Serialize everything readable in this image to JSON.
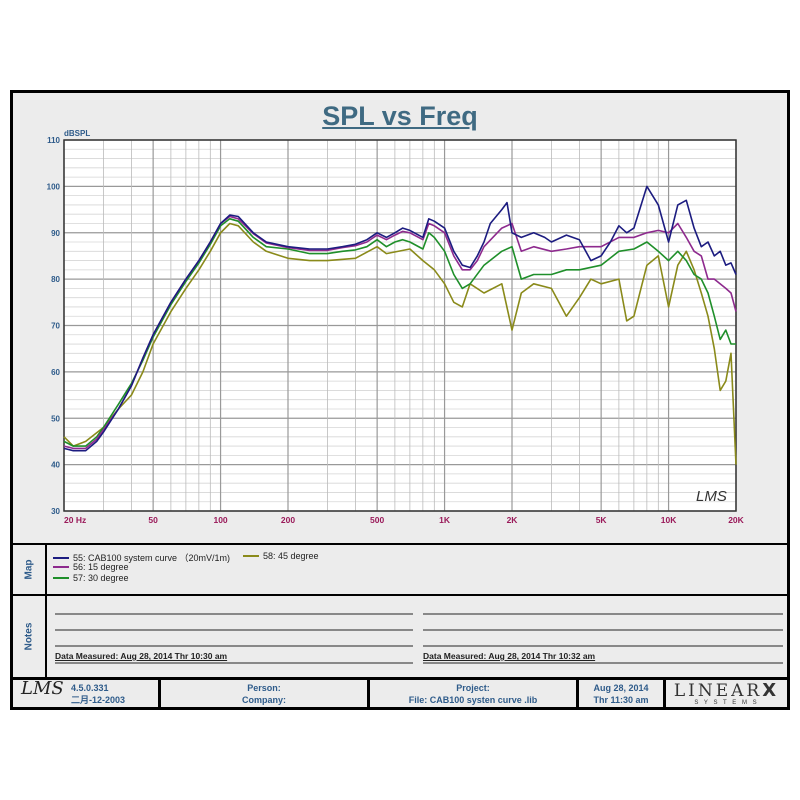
{
  "chart_data": {
    "type": "line",
    "title": "SPL vs Freq",
    "ylabel": "dBSPL",
    "xlabel": "",
    "x_scale": "log",
    "xlim": [
      20,
      20000
    ],
    "ylim": [
      30,
      110
    ],
    "grid": true,
    "x_ticks": [
      {
        "v": 20,
        "label": "20  Hz"
      },
      {
        "v": 50,
        "label": "50"
      },
      {
        "v": 100,
        "label": "100"
      },
      {
        "v": 200,
        "label": "200"
      },
      {
        "v": 500,
        "label": "500"
      },
      {
        "v": 1000,
        "label": "1K"
      },
      {
        "v": 2000,
        "label": "2K"
      },
      {
        "v": 5000,
        "label": "5K"
      },
      {
        "v": 10000,
        "label": "10K"
      },
      {
        "v": 20000,
        "label": "20K"
      }
    ],
    "y_ticks": [
      30,
      40,
      50,
      60,
      70,
      80,
      90,
      100,
      110
    ],
    "series": [
      {
        "name": "55: CAB100 system curve  （20mV/1m)",
        "color": "#1c1c80",
        "points": [
          [
            20,
            43.5
          ],
          [
            22,
            43
          ],
          [
            25,
            43
          ],
          [
            28,
            45
          ],
          [
            30,
            47
          ],
          [
            35,
            52
          ],
          [
            40,
            57
          ],
          [
            45,
            63
          ],
          [
            50,
            68
          ],
          [
            60,
            75
          ],
          [
            70,
            80
          ],
          [
            80,
            84
          ],
          [
            90,
            88
          ],
          [
            100,
            92
          ],
          [
            110,
            93.8
          ],
          [
            120,
            93.5
          ],
          [
            140,
            90
          ],
          [
            160,
            88
          ],
          [
            200,
            87
          ],
          [
            250,
            86.5
          ],
          [
            300,
            86.5
          ],
          [
            350,
            87
          ],
          [
            400,
            87.5
          ],
          [
            450,
            88.5
          ],
          [
            500,
            90
          ],
          [
            550,
            89
          ],
          [
            600,
            90
          ],
          [
            650,
            91
          ],
          [
            700,
            90.5
          ],
          [
            800,
            89
          ],
          [
            850,
            93
          ],
          [
            900,
            92.5
          ],
          [
            1000,
            91
          ],
          [
            1100,
            86
          ],
          [
            1200,
            83
          ],
          [
            1300,
            82.5
          ],
          [
            1400,
            85
          ],
          [
            1500,
            88
          ],
          [
            1600,
            92
          ],
          [
            1800,
            95
          ],
          [
            1900,
            96.5
          ],
          [
            2000,
            90
          ],
          [
            2200,
            89
          ],
          [
            2500,
            90
          ],
          [
            2800,
            89
          ],
          [
            3000,
            88
          ],
          [
            3500,
            89.5
          ],
          [
            4000,
            88.5
          ],
          [
            4500,
            84
          ],
          [
            5000,
            85
          ],
          [
            5500,
            88
          ],
          [
            6000,
            91.5
          ],
          [
            6500,
            90
          ],
          [
            7000,
            91
          ],
          [
            8000,
            100
          ],
          [
            9000,
            96
          ],
          [
            10000,
            88
          ],
          [
            11000,
            96
          ],
          [
            12000,
            97
          ],
          [
            13000,
            91
          ],
          [
            14000,
            87
          ],
          [
            15000,
            88
          ],
          [
            16000,
            85
          ],
          [
            17000,
            86
          ],
          [
            18000,
            83
          ],
          [
            19000,
            83.5
          ],
          [
            20000,
            81
          ]
        ]
      },
      {
        "name": "56: 15 degree",
        "color": "#8e2a8e",
        "points": [
          [
            20,
            44
          ],
          [
            22,
            43.5
          ],
          [
            25,
            43.5
          ],
          [
            28,
            45.5
          ],
          [
            30,
            47.5
          ],
          [
            35,
            52
          ],
          [
            40,
            57
          ],
          [
            45,
            63
          ],
          [
            50,
            68
          ],
          [
            60,
            75
          ],
          [
            70,
            80
          ],
          [
            80,
            84
          ],
          [
            90,
            88
          ],
          [
            100,
            92
          ],
          [
            110,
            93.5
          ],
          [
            120,
            93
          ],
          [
            140,
            89.8
          ],
          [
            160,
            87.8
          ],
          [
            200,
            86.8
          ],
          [
            250,
            86.2
          ],
          [
            300,
            86.2
          ],
          [
            350,
            86.8
          ],
          [
            400,
            87.2
          ],
          [
            450,
            88
          ],
          [
            500,
            89.5
          ],
          [
            550,
            88.5
          ],
          [
            600,
            89.5
          ],
          [
            650,
            90.3
          ],
          [
            700,
            90
          ],
          [
            800,
            88.5
          ],
          [
            850,
            92
          ],
          [
            900,
            91.5
          ],
          [
            1000,
            90
          ],
          [
            1100,
            85
          ],
          [
            1200,
            82
          ],
          [
            1300,
            82
          ],
          [
            1400,
            84
          ],
          [
            1500,
            87
          ],
          [
            1800,
            91
          ],
          [
            2000,
            92
          ],
          [
            2200,
            86
          ],
          [
            2500,
            87
          ],
          [
            3000,
            86
          ],
          [
            3500,
            86.5
          ],
          [
            4000,
            87
          ],
          [
            5000,
            87
          ],
          [
            6000,
            89
          ],
          [
            7000,
            89
          ],
          [
            8000,
            90
          ],
          [
            9000,
            90.5
          ],
          [
            10000,
            90
          ],
          [
            11000,
            92
          ],
          [
            12000,
            89
          ],
          [
            13000,
            86
          ],
          [
            14000,
            85
          ],
          [
            15000,
            80
          ],
          [
            16000,
            80
          ],
          [
            18000,
            78
          ],
          [
            19000,
            77
          ],
          [
            20000,
            73
          ]
        ]
      },
      {
        "name": "57: 30 degree",
        "color": "#1f8f2a",
        "points": [
          [
            20,
            45
          ],
          [
            22,
            44
          ],
          [
            25,
            44
          ],
          [
            28,
            46
          ],
          [
            30,
            48
          ],
          [
            35,
            53
          ],
          [
            40,
            57.5
          ],
          [
            45,
            62.5
          ],
          [
            50,
            67.5
          ],
          [
            60,
            74.5
          ],
          [
            70,
            79.5
          ],
          [
            80,
            83.5
          ],
          [
            90,
            87.5
          ],
          [
            100,
            91.5
          ],
          [
            110,
            93
          ],
          [
            120,
            92.5
          ],
          [
            140,
            89
          ],
          [
            160,
            87
          ],
          [
            200,
            86.5
          ],
          [
            250,
            85.5
          ],
          [
            300,
            85.5
          ],
          [
            350,
            86
          ],
          [
            400,
            86.3
          ],
          [
            450,
            87
          ],
          [
            500,
            88.5
          ],
          [
            550,
            87
          ],
          [
            600,
            88
          ],
          [
            650,
            88.5
          ],
          [
            700,
            88
          ],
          [
            800,
            86.5
          ],
          [
            850,
            90
          ],
          [
            900,
            89
          ],
          [
            1000,
            86
          ],
          [
            1100,
            81
          ],
          [
            1200,
            78
          ],
          [
            1300,
            79
          ],
          [
            1500,
            83
          ],
          [
            1800,
            86
          ],
          [
            2000,
            87
          ],
          [
            2200,
            80
          ],
          [
            2500,
            81
          ],
          [
            3000,
            81
          ],
          [
            3500,
            82
          ],
          [
            4000,
            82
          ],
          [
            5000,
            83
          ],
          [
            6000,
            86
          ],
          [
            7000,
            86.5
          ],
          [
            8000,
            88
          ],
          [
            9000,
            86
          ],
          [
            10000,
            84
          ],
          [
            11000,
            86
          ],
          [
            12000,
            84
          ],
          [
            13000,
            81
          ],
          [
            14000,
            80
          ],
          [
            15000,
            77
          ],
          [
            16000,
            72
          ],
          [
            17000,
            67
          ],
          [
            18000,
            69
          ],
          [
            19000,
            66
          ],
          [
            20000,
            66
          ]
        ]
      },
      {
        "name": "58: 45 degree",
        "color": "#8a8a1a",
        "points": [
          [
            20,
            46
          ],
          [
            22,
            44
          ],
          [
            25,
            45
          ],
          [
            30,
            48
          ],
          [
            35,
            52
          ],
          [
            40,
            55
          ],
          [
            45,
            60
          ],
          [
            50,
            66
          ],
          [
            60,
            73
          ],
          [
            70,
            78
          ],
          [
            80,
            82
          ],
          [
            90,
            86
          ],
          [
            100,
            90
          ],
          [
            110,
            92
          ],
          [
            120,
            91.5
          ],
          [
            140,
            88
          ],
          [
            160,
            86
          ],
          [
            200,
            84.5
          ],
          [
            250,
            84
          ],
          [
            300,
            84
          ],
          [
            400,
            84.5
          ],
          [
            500,
            87
          ],
          [
            550,
            85.5
          ],
          [
            700,
            86.5
          ],
          [
            800,
            84
          ],
          [
            900,
            82
          ],
          [
            1000,
            79
          ],
          [
            1100,
            75
          ],
          [
            1200,
            74
          ],
          [
            1300,
            79
          ],
          [
            1500,
            77
          ],
          [
            1800,
            79
          ],
          [
            2000,
            69
          ],
          [
            2200,
            77
          ],
          [
            2500,
            79
          ],
          [
            3000,
            78
          ],
          [
            3500,
            72
          ],
          [
            4000,
            76
          ],
          [
            4500,
            80
          ],
          [
            5000,
            79
          ],
          [
            6000,
            80
          ],
          [
            6500,
            71
          ],
          [
            7000,
            72
          ],
          [
            8000,
            83
          ],
          [
            9000,
            85
          ],
          [
            10000,
            74
          ],
          [
            11000,
            83
          ],
          [
            12000,
            86
          ],
          [
            13000,
            82
          ],
          [
            14000,
            77
          ],
          [
            15000,
            72
          ],
          [
            16000,
            65
          ],
          [
            17000,
            56
          ],
          [
            18000,
            58
          ],
          [
            19000,
            64
          ],
          [
            20000,
            40
          ]
        ]
      }
    ],
    "legend_placement": "below"
  },
  "map": {
    "label": "Map"
  },
  "notes": {
    "label": "Notes",
    "left_measured": "Data Measured: Aug 28, 2014  Thr 10:30 am",
    "right_measured": "Data Measured: Aug 28, 2014  Thr 10:32 am"
  },
  "footer": {
    "logo": "LMS",
    "version": "4.5.0.331",
    "build_date": "二月-12-2003",
    "person": "Person:",
    "company": "Company:",
    "project": "Project:",
    "file": "File: CAB100 systen curve .lib",
    "date": "Aug 28, 2014",
    "time": "Thr 11:30 am",
    "brand": "LINEAR",
    "brand_x": "X",
    "brand_sub": "S Y S T E M S"
  },
  "watermark": "LMS"
}
